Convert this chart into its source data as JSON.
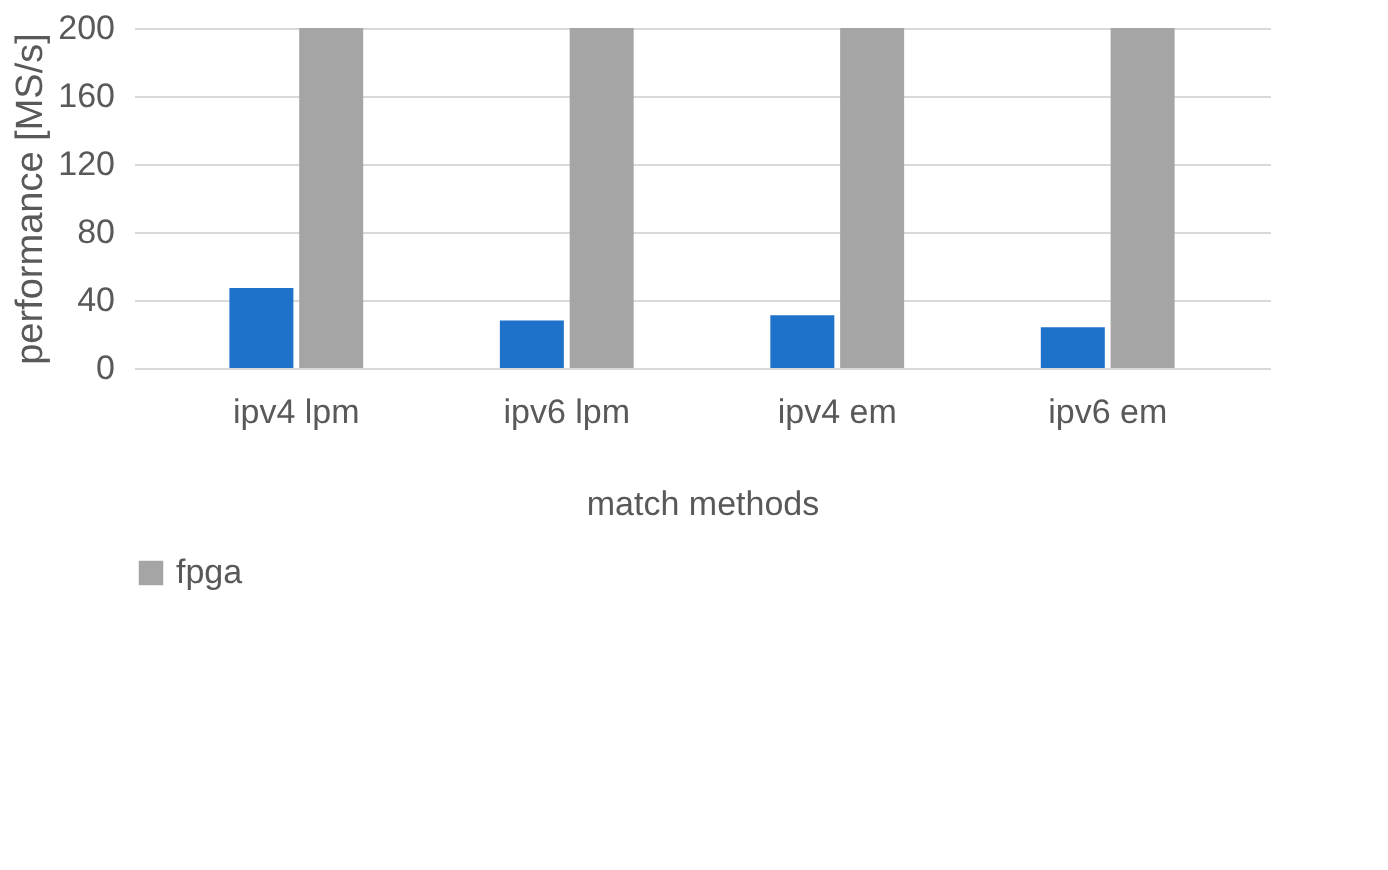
{
  "chart_data": {
    "type": "bar",
    "xlabel": "match methods",
    "ylabel": "performance [MS/s]",
    "categories": [
      "ipv4 lpm",
      "ipv6 lpm",
      "ipv4 em",
      "ipv6 em"
    ],
    "series": [
      {
        "color": "#1f72c9",
        "values": [
          47,
          28,
          31,
          24
        ]
      },
      {
        "name": "fpga",
        "color": "#a5a5a5",
        "values": [
          200,
          200,
          200,
          200
        ]
      }
    ],
    "ylim": [
      0,
      200
    ],
    "yticks": [
      0,
      40,
      80,
      120,
      160,
      200
    ],
    "grid": "y",
    "legend": "bottom"
  }
}
